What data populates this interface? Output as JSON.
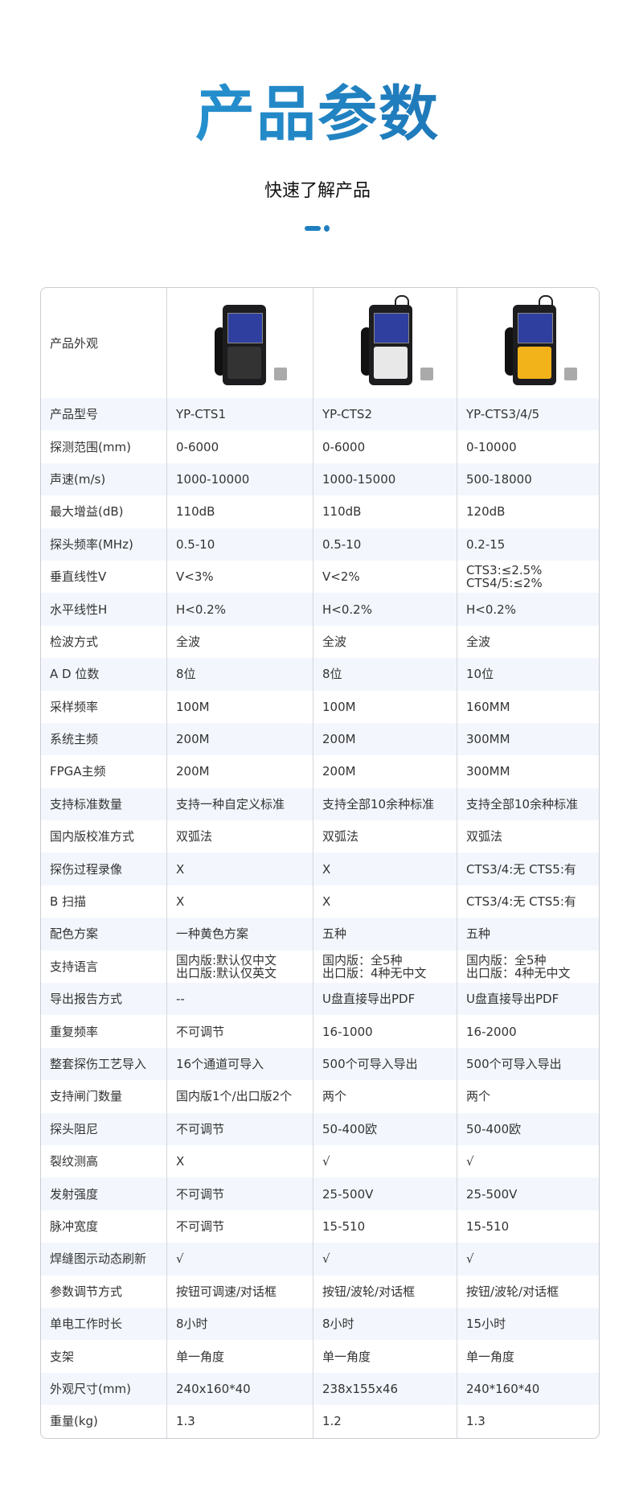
{
  "header": {
    "title": "产品参数",
    "subtitle": "快速了解产品"
  },
  "colors": {
    "accent": "#1f7fc0",
    "row_shade": "#f3f7fd"
  },
  "table": {
    "image_row_label": "产品外观",
    "products": [
      {
        "image": "device-photo-yp-cts1",
        "keypad_color": "#333333"
      },
      {
        "image": "device-photo-yp-cts2",
        "keypad_color": "#e8e8e8"
      },
      {
        "image": "device-photo-yp-cts345",
        "keypad_color": "#f2b21a"
      }
    ],
    "rows": [
      {
        "label": "产品型号",
        "values": [
          "YP-CTS1",
          "YP-CTS2",
          "YP-CTS3/4/5"
        ]
      },
      {
        "label": "探测范围(mm)",
        "values": [
          "0-6000",
          "0-6000",
          "0-10000"
        ]
      },
      {
        "label": "声速(m/s)",
        "values": [
          "1000-10000",
          "1000-15000",
          "500-18000"
        ]
      },
      {
        "label": "最大增益(dB)",
        "values": [
          "110dB",
          "110dB",
          "120dB"
        ]
      },
      {
        "label": "探头频率(MHz)",
        "values": [
          "0.5-10",
          "0.5-10",
          "0.2-15"
        ]
      },
      {
        "label": "垂直线性V",
        "values": [
          "V<3%",
          "V<2%",
          "CTS3:≤2.5%\nCTS4/5:≤2%"
        ]
      },
      {
        "label": "水平线性H",
        "values": [
          "H<0.2%",
          "H<0.2%",
          "H<0.2%"
        ]
      },
      {
        "label": "检波方式",
        "values": [
          "全波",
          "全波",
          "全波"
        ]
      },
      {
        "label": "A D 位数",
        "values": [
          "8位",
          "8位",
          "10位"
        ]
      },
      {
        "label": "采样频率",
        "values": [
          "100M",
          "100M",
          "160MM"
        ]
      },
      {
        "label": "系统主频",
        "values": [
          "200M",
          "200M",
          "300MM"
        ]
      },
      {
        "label": "FPGA主频",
        "values": [
          "200M",
          "200M",
          "300MM"
        ]
      },
      {
        "label": "支持标准数量",
        "values": [
          "支持一种自定义标准",
          "支持全部10余种标准",
          "支持全部10余种标准"
        ]
      },
      {
        "label": "国内版校准方式",
        "values": [
          "双弧法",
          "双弧法",
          "双弧法"
        ]
      },
      {
        "label": "探伤过程录像",
        "values": [
          "X",
          "X",
          "CTS3/4:无   CTS5:有"
        ]
      },
      {
        "label": "B 扫描",
        "values": [
          "X",
          "X",
          "CTS3/4:无   CTS5:有"
        ]
      },
      {
        "label": "配色方案",
        "values": [
          "一种黄色方案",
          "五种",
          "五种"
        ]
      },
      {
        "label": "支持语言",
        "values": [
          "国内版:默认仅中文\n出口版:默认仅英文",
          "国内版：全5种\n出口版：4种无中文",
          "国内版：全5种\n出口版：4种无中文"
        ]
      },
      {
        "label": "导出报告方式",
        "values": [
          "--",
          "U盘直接导出PDF",
          "U盘直接导出PDF"
        ]
      },
      {
        "label": "重复频率",
        "values": [
          "不可调节",
          "16-1000",
          "16-2000"
        ]
      },
      {
        "label": "整套探伤工艺导入",
        "values": [
          "16个通道可导入",
          "500个可导入导出",
          "500个可导入导出"
        ]
      },
      {
        "label": "支持闸门数量",
        "values": [
          "国内版1个/出口版2个",
          "两个",
          "两个"
        ]
      },
      {
        "label": "探头阻尼",
        "values": [
          "不可调节",
          "50-400欧",
          "50-400欧"
        ]
      },
      {
        "label": "裂纹测高",
        "values": [
          "X",
          "√",
          "√"
        ]
      },
      {
        "label": "发射强度",
        "values": [
          "不可调节",
          "25-500V",
          "25-500V"
        ]
      },
      {
        "label": "脉冲宽度",
        "values": [
          "不可调节",
          "15-510",
          "15-510"
        ]
      },
      {
        "label": "焊缝图示动态刷新",
        "values": [
          "√",
          "√",
          "√"
        ]
      },
      {
        "label": "参数调节方式",
        "values": [
          "按钮可调速/对话框",
          "按钮/波轮/对话框",
          "按钮/波轮/对话框"
        ]
      },
      {
        "label": "单电工作时长",
        "values": [
          "8小时",
          "8小时",
          "15小时"
        ]
      },
      {
        "label": "支架",
        "values": [
          "单一角度",
          "单一角度",
          "单一角度"
        ]
      },
      {
        "label": "外观尺寸(mm)",
        "values": [
          "240x160*40",
          "238x155x46",
          "240*160*40"
        ]
      },
      {
        "label": "重量(kg)",
        "values": [
          "1.3",
          "1.2",
          "1.3"
        ]
      }
    ]
  }
}
